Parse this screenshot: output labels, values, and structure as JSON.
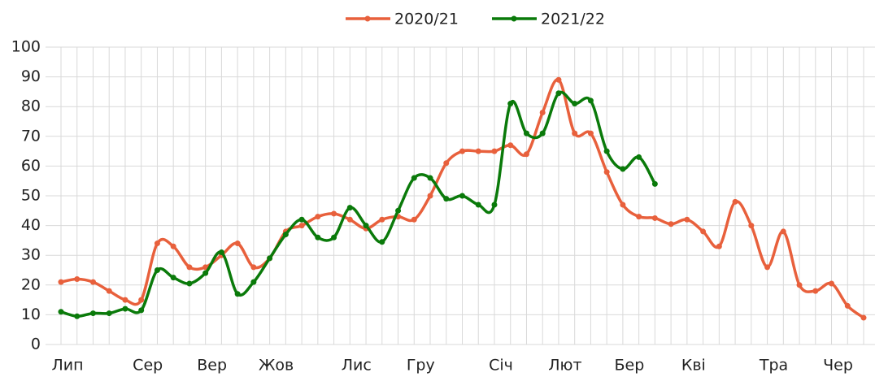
{
  "chart_data": {
    "type": "line",
    "categories": [
      "Лип",
      null,
      null,
      null,
      null,
      "Сер",
      null,
      null,
      null,
      "Вер",
      null,
      null,
      null,
      "Жов",
      null,
      null,
      null,
      null,
      "Лис",
      null,
      null,
      null,
      "Гру",
      null,
      null,
      null,
      null,
      "Січ",
      null,
      null,
      null,
      "Лют",
      null,
      null,
      null,
      "Бер",
      null,
      null,
      null,
      "Кві",
      null,
      null,
      null,
      null,
      "Тра",
      null,
      null,
      null,
      "Чер",
      null,
      null
    ],
    "series": [
      {
        "name": "2020/21",
        "color": "#e8603c",
        "values": [
          21,
          22,
          21,
          18,
          15,
          15,
          34,
          33,
          26,
          26,
          30,
          34,
          26,
          29,
          38,
          40,
          43,
          44,
          42,
          39,
          42,
          43,
          42,
          50,
          61,
          65,
          65,
          65,
          67,
          64,
          78,
          89,
          71,
          71,
          58,
          47,
          43,
          42.5,
          40.5,
          42,
          38,
          33,
          48,
          40,
          26,
          38,
          20,
          18,
          20.5,
          13,
          9
        ]
      },
      {
        "name": "2021/22",
        "color": "#0a7a0a",
        "values": [
          11,
          9.5,
          10.5,
          10.5,
          12,
          11.5,
          25,
          22.5,
          20.5,
          24,
          31,
          17,
          21,
          29,
          37,
          42,
          36,
          36,
          46,
          40,
          34.5,
          45,
          56,
          56,
          49,
          50,
          47,
          47,
          81,
          71,
          71,
          84.5,
          81,
          82,
          65,
          59,
          63,
          54,
          null,
          null,
          null,
          null,
          null,
          null,
          null,
          null,
          null,
          null,
          null,
          null,
          null
        ]
      }
    ],
    "ylim": [
      0,
      100
    ],
    "yticks": [
      0,
      10,
      20,
      30,
      40,
      50,
      60,
      70,
      80,
      90,
      100
    ],
    "grid": true,
    "legend": "top"
  }
}
